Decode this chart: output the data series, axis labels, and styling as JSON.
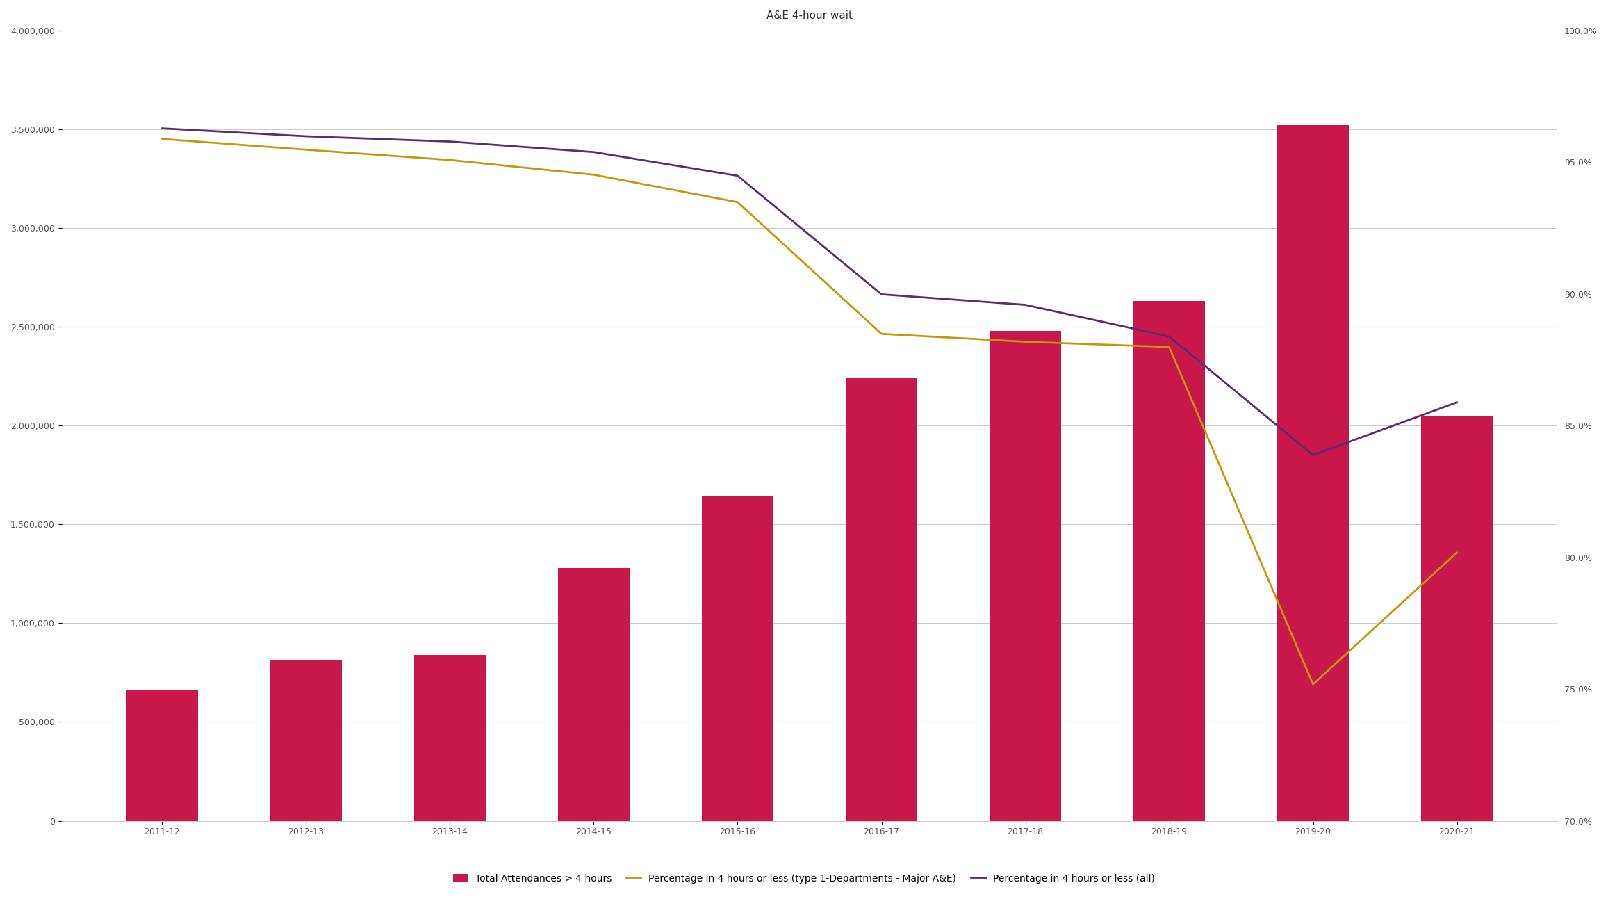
{
  "title": "A&E 4-hour wait",
  "categories": [
    "2011-12",
    "2012-13",
    "2013-14",
    "2014-15",
    "2015-16",
    "2016-17",
    "2017-18",
    "2018-19",
    "2019-20",
    "2020-21"
  ],
  "bar_values": [
    660000,
    810000,
    840000,
    1280000,
    1640000,
    2240000,
    2480000,
    2630000,
    3520000,
    2050000
  ],
  "line_major": [
    0.9588,
    0.9547,
    0.9508,
    0.9452,
    0.9348,
    0.8848,
    0.8818,
    0.8798,
    0.7518,
    0.8018
  ],
  "line_all": [
    0.9628,
    0.9598,
    0.9578,
    0.9538,
    0.9448,
    0.8998,
    0.8958,
    0.8838,
    0.8388,
    0.8588
  ],
  "bar_color": "#C8174B",
  "line_major_color": "#C8960A",
  "line_all_color": "#5B2D6E",
  "background_color": "#FFFFFF",
  "gridline_color": "#CCCCCC",
  "left_ylim": [
    0,
    4000000
  ],
  "right_ylim": [
    0.7,
    1.0
  ],
  "left_yticks": [
    0,
    500000,
    1000000,
    1500000,
    2000000,
    2500000,
    3000000,
    3500000,
    4000000
  ],
  "right_yticks": [
    0.7,
    0.75,
    0.8,
    0.85,
    0.9,
    0.95,
    1.0
  ],
  "legend_labels": [
    "Total Attendances > 4 hours",
    "Percentage in 4 hours or less (type 1-Departments - Major A&E)",
    "Percentage in 4 hours or less (all)"
  ],
  "label_fontsize": 10,
  "title_fontsize": 11
}
